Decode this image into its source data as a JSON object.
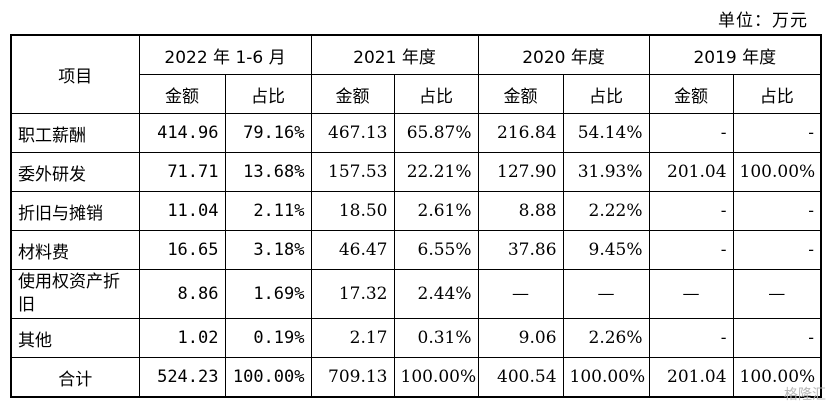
{
  "unit_label": "单位：万元",
  "header": {
    "item": "项目",
    "periods": [
      "2022 年 1-6 月",
      "2021 年度",
      "2020 年度",
      "2019 年度"
    ],
    "amount": "金额",
    "ratio": "占比"
  },
  "rows": [
    {
      "item": "职工薪酬",
      "c": [
        "414.96",
        "79.16%",
        "467.13",
        "65.87%",
        "216.84",
        "54.14%",
        "-",
        "-"
      ]
    },
    {
      "item": "委外研发",
      "c": [
        "71.71",
        "13.68%",
        "157.53",
        "22.21%",
        "127.90",
        "31.93%",
        "201.04",
        "100.00%"
      ]
    },
    {
      "item": "折旧与摊销",
      "c": [
        "11.04",
        "2.11%",
        "18.50",
        "2.61%",
        "8.88",
        "2.22%",
        "-",
        "-"
      ]
    },
    {
      "item": "材料费",
      "c": [
        "16.65",
        "3.18%",
        "46.47",
        "6.55%",
        "37.86",
        "9.45%",
        "-",
        "-"
      ]
    },
    {
      "item": "使用权资产折旧",
      "c": [
        "8.86",
        "1.69%",
        "17.32",
        "2.44%",
        "—",
        "—",
        "—",
        "—"
      ]
    },
    {
      "item": "其他",
      "c": [
        "1.02",
        "0.19%",
        "2.17",
        "0.31%",
        "9.06",
        "2.26%",
        "-",
        "-"
      ]
    }
  ],
  "total": {
    "item": "合计",
    "c": [
      "524.23",
      "100.00%",
      "709.13",
      "100.00%",
      "400.54",
      "100.00%",
      "201.04",
      "100.00%"
    ]
  },
  "watermark": "格隆汇"
}
